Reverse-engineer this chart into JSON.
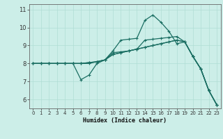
{
  "xlabel": "Humidex (Indice chaleur)",
  "bg_color": "#cceee8",
  "grid_color": "#b0ddd5",
  "line_color": "#1a6e62",
  "xlim": [
    -0.5,
    23.5
  ],
  "ylim": [
    5.5,
    11.3
  ],
  "xticks": [
    0,
    1,
    2,
    3,
    4,
    5,
    6,
    7,
    8,
    9,
    10,
    11,
    12,
    13,
    14,
    15,
    16,
    17,
    18,
    19,
    20,
    21,
    22,
    23
  ],
  "yticks": [
    6,
    7,
    8,
    9,
    10,
    11
  ],
  "lines": [
    {
      "x": [
        0,
        1,
        2,
        3,
        4,
        5,
        6,
        7,
        8,
        9,
        10,
        11,
        12,
        13,
        14,
        15,
        16,
        17,
        18,
        19,
        20,
        21,
        22,
        23
      ],
      "y": [
        8.0,
        8.0,
        8.0,
        8.0,
        8.0,
        8.0,
        8.0,
        8.0,
        8.1,
        8.2,
        8.5,
        8.6,
        8.7,
        8.8,
        8.9,
        9.0,
        9.1,
        9.2,
        9.3,
        9.2,
        8.4,
        7.7,
        6.5,
        5.7
      ]
    },
    {
      "x": [
        0,
        1,
        2,
        3,
        4,
        5,
        6,
        7,
        8,
        9,
        10,
        11,
        12,
        13,
        14,
        15,
        16,
        17,
        18,
        19,
        20,
        21,
        22,
        23
      ],
      "y": [
        8.0,
        8.0,
        8.0,
        8.0,
        8.0,
        8.0,
        7.1,
        7.35,
        8.0,
        8.2,
        8.7,
        9.3,
        9.35,
        9.4,
        10.4,
        10.7,
        10.3,
        9.8,
        9.1,
        9.2,
        8.4,
        7.7,
        6.5,
        5.7
      ]
    },
    {
      "x": [
        0,
        1,
        2,
        3,
        4,
        5,
        6,
        7,
        8,
        9,
        10,
        11,
        12,
        13,
        14,
        15,
        16,
        17,
        18,
        19,
        20,
        21,
        22,
        23
      ],
      "y": [
        8.0,
        8.0,
        8.0,
        8.0,
        8.0,
        8.0,
        8.0,
        8.05,
        8.1,
        8.2,
        8.6,
        8.65,
        8.7,
        8.8,
        9.3,
        9.35,
        9.4,
        9.45,
        9.5,
        9.2,
        8.4,
        7.7,
        6.5,
        5.7
      ]
    },
    {
      "x": [
        0,
        1,
        2,
        3,
        4,
        5,
        6,
        7,
        8,
        9,
        10,
        11,
        12,
        13,
        14,
        15,
        16,
        17,
        18,
        19,
        20,
        21,
        22,
        23
      ],
      "y": [
        8.0,
        8.0,
        8.0,
        8.0,
        8.0,
        8.0,
        8.0,
        8.05,
        8.1,
        8.2,
        8.5,
        8.6,
        8.7,
        8.8,
        8.9,
        9.0,
        9.1,
        9.2,
        9.3,
        9.2,
        8.4,
        7.7,
        6.5,
        5.7
      ]
    }
  ],
  "marker": "+",
  "markersize": 3.5,
  "linewidth": 0.9
}
